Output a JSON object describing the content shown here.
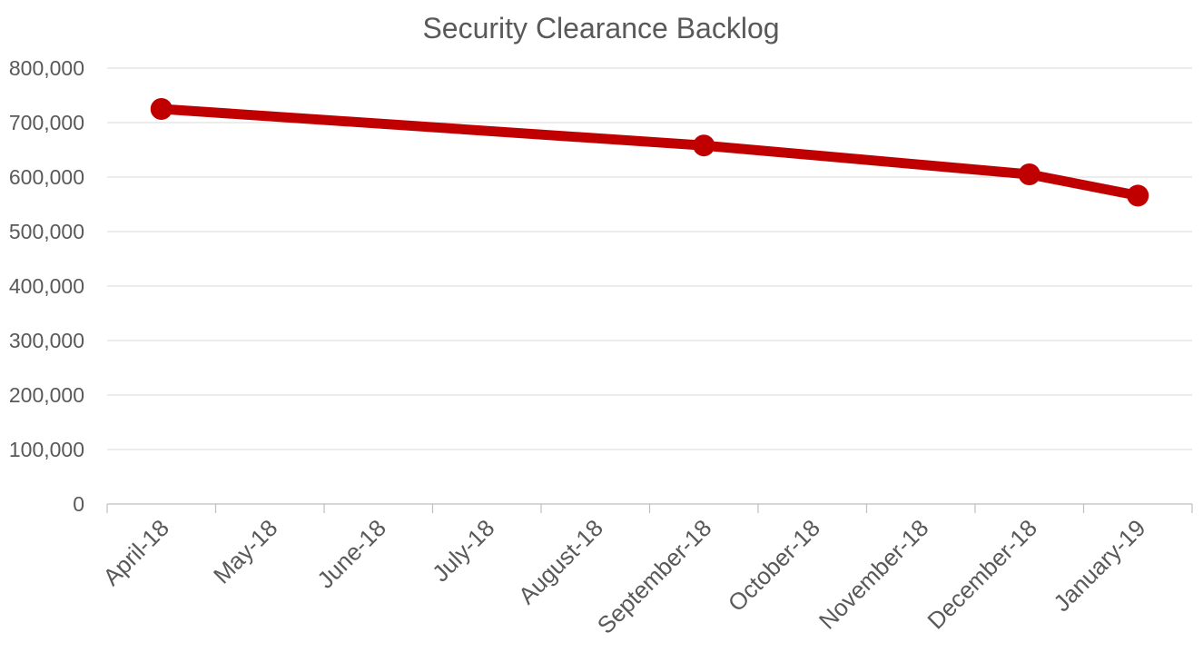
{
  "chart_data": {
    "type": "line",
    "title": "Security Clearance Backlog",
    "xlabel": "",
    "ylabel": "",
    "categories": [
      "April-18",
      "May-18",
      "June-18",
      "July-18",
      "August-18",
      "September-18",
      "October-18",
      "November-18",
      "December-18",
      "January-19"
    ],
    "y_tick_labels": [
      "0",
      "100,000",
      "200,000",
      "300,000",
      "400,000",
      "500,000",
      "600,000",
      "700,000",
      "800,000"
    ],
    "ylim": [
      0,
      800000
    ],
    "y_step": 100000,
    "grid": true,
    "legend": "none",
    "series": [
      {
        "color": "#c00000",
        "points": [
          {
            "x": "April-18",
            "y": 725000
          },
          {
            "x": "September-18",
            "y": 658000
          },
          {
            "x": "December-18",
            "y": 605000
          },
          {
            "x": "January-19",
            "y": 566000
          }
        ]
      }
    ]
  }
}
